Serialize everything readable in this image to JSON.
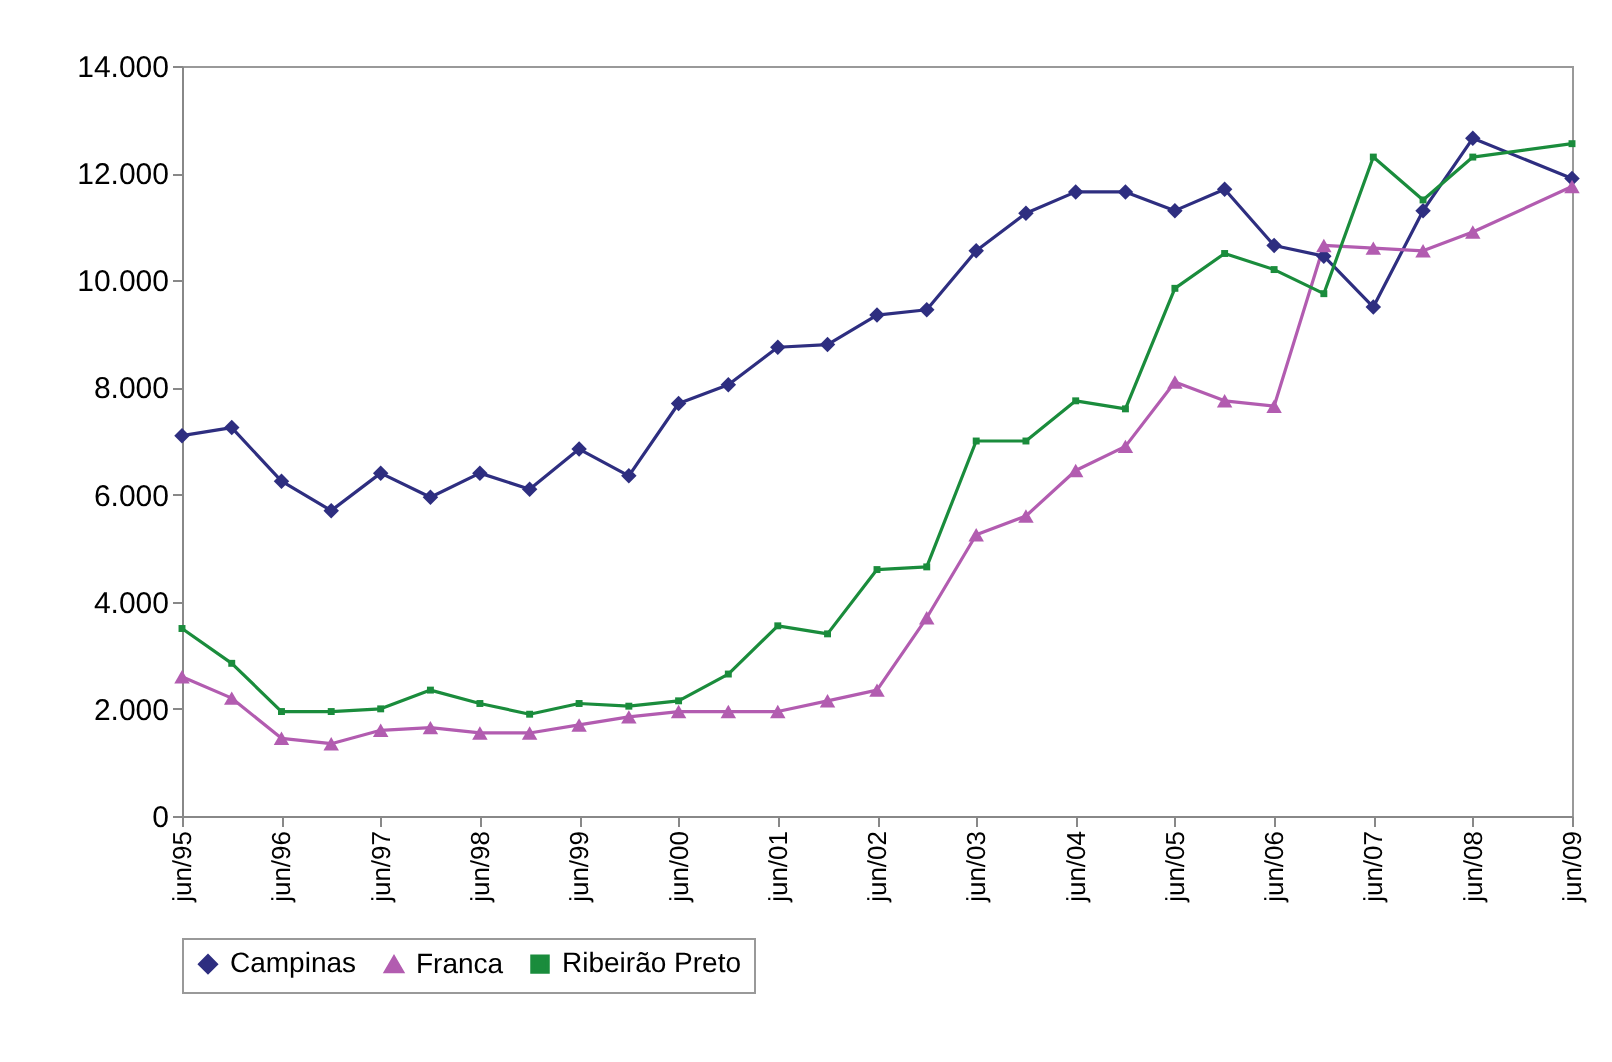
{
  "chart_data": {
    "type": "line",
    "x": [
      "1995-06",
      "1995-12",
      "1996-06",
      "1996-12",
      "1997-06",
      "1997-12",
      "1998-06",
      "1998-12",
      "1999-06",
      "1999-12",
      "2000-06",
      "2000-12",
      "2001-06",
      "2001-12",
      "2002-06",
      "2002-12",
      "2003-06",
      "2003-12",
      "2004-06",
      "2004-12",
      "2005-06",
      "2005-12",
      "2006-06",
      "2006-12",
      "2007-06",
      "2007-12",
      "2008-06",
      "2009-06"
    ],
    "series": [
      {
        "name": "Campinas",
        "color": "#2e2e80",
        "marker": "diamond",
        "values": [
          7100,
          7250,
          6250,
          5700,
          6400,
          5950,
          6400,
          6100,
          6850,
          6350,
          7700,
          8050,
          8750,
          8800,
          9350,
          9450,
          10550,
          11250,
          11650,
          11650,
          11300,
          11700,
          10650,
          10450,
          9500,
          11300,
          12650,
          11900
        ]
      },
      {
        "name": "Franca",
        "color": "#b25cb0",
        "marker": "triangle",
        "values": [
          2600,
          2200,
          1450,
          1350,
          1600,
          1650,
          1550,
          1550,
          1700,
          1850,
          1950,
          1950,
          1950,
          2150,
          2350,
          3700,
          5250,
          5600,
          6450,
          6900,
          8100,
          7750,
          7650,
          10650,
          10600,
          10550,
          10900,
          11750
        ]
      },
      {
        "name": "Ribeirão Preto",
        "color": "#1a8c3c",
        "marker": "square",
        "values": [
          3500,
          2850,
          1950,
          1950,
          2000,
          2350,
          2100,
          1900,
          2100,
          2050,
          2150,
          2650,
          3550,
          3400,
          4600,
          4650,
          7000,
          7000,
          7750,
          7600,
          9850,
          10500,
          10200,
          9750,
          12300,
          11500,
          12300,
          12550
        ]
      }
    ],
    "xlim": [
      "1995-06",
      "2009-06"
    ],
    "xticks": [
      {
        "value": "1995-06",
        "label": "jun/95"
      },
      {
        "value": "1996-06",
        "label": "jun/96"
      },
      {
        "value": "1997-06",
        "label": "jun/97"
      },
      {
        "value": "1998-06",
        "label": "jun/98"
      },
      {
        "value": "1999-06",
        "label": "jun/99"
      },
      {
        "value": "2000-06",
        "label": "jun/00"
      },
      {
        "value": "2001-06",
        "label": "jun/01"
      },
      {
        "value": "2002-06",
        "label": "jun/02"
      },
      {
        "value": "2003-06",
        "label": "jun/03"
      },
      {
        "value": "2004-06",
        "label": "jun/04"
      },
      {
        "value": "2005-06",
        "label": "jun/05"
      },
      {
        "value": "2006-06",
        "label": "jun/06"
      },
      {
        "value": "2007-06",
        "label": "jun/07"
      },
      {
        "value": "2008-06",
        "label": "jun/08"
      },
      {
        "value": "2009-06",
        "label": "jun/09"
      }
    ],
    "ylim": [
      0,
      14000
    ],
    "yticks": [
      0,
      {
        "value": 2000,
        "label": "2.000"
      },
      {
        "value": 4000,
        "label": "4.000"
      },
      {
        "value": 6000,
        "label": "6.000"
      },
      {
        "value": 8000,
        "label": "8.000"
      },
      {
        "value": 10000,
        "label": "10.000"
      },
      {
        "value": 12000,
        "label": "12.000"
      },
      {
        "value": 14000,
        "label": "14.000"
      }
    ],
    "grid": false,
    "legend": "bottom",
    "line_style": "solid"
  }
}
